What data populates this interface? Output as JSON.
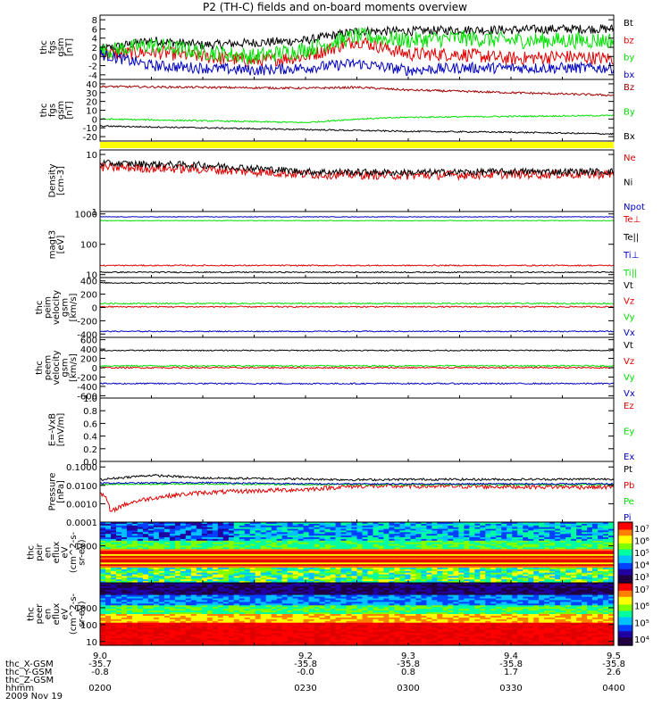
{
  "title": "P2 (TH-C) fields and on-board moments overview",
  "colors": {
    "black": "#000000",
    "red": "#e00000",
    "green": "#00e000",
    "blue": "#0000c0",
    "darkred": "#a00000",
    "yellow": "#ffff00"
  },
  "chart_data": [
    {
      "type": "line",
      "panel": "fgs_gsm",
      "ylabel": [
        "thc",
        "fgs",
        "gsm",
        "[nT]"
      ],
      "ylim": [
        -5,
        9
      ],
      "ticks": [
        [
          8,
          "8"
        ],
        [
          6,
          "6"
        ],
        [
          4,
          "4"
        ],
        [
          2,
          "2"
        ],
        [
          0,
          "0"
        ],
        [
          -2,
          "-2"
        ],
        [
          -4,
          "-4"
        ]
      ],
      "xlim": [
        9.0,
        9.5
      ],
      "series": [
        {
          "name": "Bt",
          "color": "black",
          "x": [
            9.0,
            9.05,
            9.1,
            9.15,
            9.2,
            9.25,
            9.3,
            9.35,
            9.4,
            9.45,
            9.5
          ],
          "values": [
            1.5,
            3.5,
            2.5,
            3.0,
            3.5,
            5.5,
            5.5,
            5.8,
            5.8,
            6.0,
            6.0
          ],
          "noise": 1.0
        },
        {
          "name": "bz",
          "color": "red",
          "x": [
            9.0,
            9.05,
            9.1,
            9.15,
            9.2,
            9.25,
            9.3,
            9.35,
            9.4,
            9.45,
            9.5
          ],
          "values": [
            0.5,
            1.0,
            0.0,
            -1.0,
            0.0,
            3.5,
            0.5,
            0.5,
            -0.5,
            0.0,
            -0.5
          ],
          "noise": 1.5
        },
        {
          "name": "by",
          "color": "green",
          "x": [
            9.0,
            9.05,
            9.1,
            9.15,
            9.2,
            9.25,
            9.3,
            9.35,
            9.4,
            9.45,
            9.5
          ],
          "values": [
            1.0,
            2.5,
            1.0,
            0.0,
            1.5,
            4.5,
            3.5,
            4.0,
            3.5,
            3.5,
            3.5
          ],
          "noise": 1.8
        },
        {
          "name": "bx",
          "color": "blue",
          "x": [
            9.0,
            9.05,
            9.1,
            9.15,
            9.2,
            9.25,
            9.3,
            9.35,
            9.4,
            9.45,
            9.5
          ],
          "values": [
            0.5,
            -2.0,
            -2.5,
            -3.0,
            -2.5,
            -1.5,
            -3.0,
            -2.5,
            -2.5,
            -2.5,
            -2.5
          ],
          "noise": 1.2
        }
      ]
    },
    {
      "type": "line",
      "panel": "fgs_gse",
      "ylabel": [
        "thc",
        "fgs",
        "gsm",
        "[nT]"
      ],
      "ylim": [
        -25,
        45
      ],
      "ticks": [
        [
          40,
          "40"
        ],
        [
          30,
          "30"
        ],
        [
          20,
          "20"
        ],
        [
          10,
          "10"
        ],
        [
          0,
          "0"
        ],
        [
          -10,
          "-10"
        ],
        [
          -20,
          "-20"
        ]
      ],
      "xlim": [
        9.0,
        9.5
      ],
      "series": [
        {
          "name": "Bz",
          "color": "darkred",
          "x": [
            9.0,
            9.1,
            9.2,
            9.25,
            9.3,
            9.4,
            9.5
          ],
          "values": [
            37,
            36,
            35,
            36,
            33,
            30,
            27
          ],
          "noise": 1.2
        },
        {
          "name": "By",
          "color": "green",
          "x": [
            9.0,
            9.1,
            9.2,
            9.25,
            9.3,
            9.4,
            9.5
          ],
          "values": [
            0,
            -2,
            -4,
            0,
            2,
            3,
            4
          ],
          "noise": 0.8
        },
        {
          "name": "Bx",
          "color": "black",
          "x": [
            9.0,
            9.1,
            9.2,
            9.25,
            9.3,
            9.4,
            9.5
          ],
          "values": [
            -8,
            -10,
            -12,
            -13,
            -14,
            -15,
            -17
          ],
          "noise": 0.8
        }
      ]
    },
    {
      "type": "line",
      "panel": "density",
      "ylabel": [
        "Density",
        "[cm-3]"
      ],
      "log": true,
      "ylim": [
        1,
        12
      ],
      "ticks": [
        [
          10,
          "10"
        ],
        [
          1,
          "1"
        ]
      ],
      "xlim": [
        9.0,
        9.5
      ],
      "series": [
        {
          "name": "Ne",
          "color": "red",
          "x": [
            9.0,
            9.1,
            9.2,
            9.3,
            9.4,
            9.5
          ],
          "values": [
            6,
            5.5,
            4.5,
            4.3,
            4.5,
            4.5
          ],
          "noise": 0.08
        },
        {
          "name": "Ni",
          "color": "black",
          "x": [
            9.0,
            9.1,
            9.2,
            9.3,
            9.4,
            9.5
          ],
          "values": [
            7,
            6.5,
            5.0,
            4.8,
            5.0,
            5.0
          ],
          "noise": 0.06
        },
        {
          "name": "Npot",
          "color": "blue",
          "x": [],
          "values": [],
          "noise": 0
        }
      ]
    },
    {
      "type": "line",
      "panel": "temperature",
      "ylabel": [
        "magt3",
        "[eV]"
      ],
      "log": true,
      "ylim": [
        8,
        1200
      ],
      "ticks": [
        [
          1000,
          "1000"
        ],
        [
          100,
          "100"
        ],
        [
          10,
          "10"
        ]
      ],
      "xlim": [
        9.0,
        9.5
      ],
      "series": [
        {
          "name": "Te⊥",
          "color": "red",
          "x": [
            9.0,
            9.5
          ],
          "values": [
            20,
            20
          ],
          "noise": 0.02
        },
        {
          "name": "Te||",
          "color": "black",
          "x": [
            9.0,
            9.5
          ],
          "values": [
            12,
            12
          ],
          "noise": 0.02
        },
        {
          "name": "Ti⊥",
          "color": "blue",
          "x": [
            9.0,
            9.5
          ],
          "values": [
            800,
            800
          ],
          "noise": 0.01
        },
        {
          "name": "Ti||",
          "color": "green",
          "x": [
            9.0,
            9.5
          ],
          "values": [
            600,
            600
          ],
          "noise": 0.01
        }
      ]
    },
    {
      "type": "line",
      "panel": "velocity_1",
      "ylabel": [
        "thc",
        "peim",
        "velocity",
        "gsm",
        "[km/s]"
      ],
      "ylim": [
        -450,
        450
      ],
      "ticks": [
        [
          400,
          "400"
        ],
        [
          200,
          "200"
        ],
        [
          0,
          "0"
        ],
        [
          -200,
          "-200"
        ],
        [
          -400,
          "-400"
        ]
      ],
      "xlim": [
        9.0,
        9.5
      ],
      "series": [
        {
          "name": "Vt",
          "color": "black",
          "x": [
            9.0,
            9.5
          ],
          "values": [
            370,
            360
          ],
          "noise": 8
        },
        {
          "name": "Vz",
          "color": "red",
          "x": [
            9.0,
            9.5
          ],
          "values": [
            10,
            10
          ],
          "noise": 10
        },
        {
          "name": "Vy",
          "color": "green",
          "x": [
            9.0,
            9.5
          ],
          "values": [
            60,
            60
          ],
          "noise": 10
        },
        {
          "name": "Vx",
          "color": "blue",
          "x": [
            9.0,
            9.5
          ],
          "values": [
            -360,
            -360
          ],
          "noise": 8
        }
      ]
    },
    {
      "type": "line",
      "panel": "velocity_2",
      "ylabel": [
        "thc",
        "peem",
        "velocity",
        "gsm",
        "[km/s]"
      ],
      "ylim": [
        -650,
        650
      ],
      "ticks": [
        [
          600,
          "600"
        ],
        [
          400,
          "400"
        ],
        [
          200,
          "200"
        ],
        [
          0,
          "0"
        ],
        [
          -200,
          "-200"
        ],
        [
          -400,
          "-400"
        ],
        [
          -600,
          "-600"
        ]
      ],
      "xlim": [
        9.0,
        9.5
      ],
      "series": [
        {
          "name": "Vt",
          "color": "black",
          "x": [
            9.0,
            9.5
          ],
          "values": [
            370,
            370
          ],
          "noise": 12
        },
        {
          "name": "Vz",
          "color": "red",
          "x": [
            9.0,
            9.5
          ],
          "values": [
            0,
            0
          ],
          "noise": 15
        },
        {
          "name": "Vy",
          "color": "green",
          "x": [
            9.0,
            9.5
          ],
          "values": [
            40,
            40
          ],
          "noise": 15
        },
        {
          "name": "Vx",
          "color": "blue",
          "x": [
            9.0,
            9.5
          ],
          "values": [
            -340,
            -340
          ],
          "noise": 15
        }
      ]
    },
    {
      "type": "line",
      "panel": "efield",
      "ylabel": [
        "E=-VxB",
        "[mV/m]"
      ],
      "ylim": [
        0,
        1
      ],
      "ticks": [
        [
          1,
          "1.0"
        ],
        [
          0.8,
          "0.8"
        ],
        [
          0.6,
          "0.6"
        ],
        [
          0.4,
          "0.4"
        ],
        [
          0.2,
          "0.2"
        ],
        [
          0,
          "0.0"
        ]
      ],
      "xlim": [
        9.0,
        9.5
      ],
      "series": [
        {
          "name": "Ez",
          "color": "red",
          "x": [],
          "values": [],
          "noise": 0
        },
        {
          "name": "Ey",
          "color": "green",
          "x": [],
          "values": [],
          "noise": 0
        },
        {
          "name": "Ex",
          "color": "blue",
          "x": [],
          "values": [],
          "noise": 0
        }
      ]
    },
    {
      "type": "line",
      "panel": "pressure",
      "ylabel": [
        "Pressure",
        "[nPa]"
      ],
      "log": true,
      "ylim": [
        0.0001,
        0.2
      ],
      "ticks": [
        [
          0.1,
          "0.1000"
        ],
        [
          0.01,
          "0.0100"
        ],
        [
          0.001,
          "0.0010"
        ],
        [
          0.0001,
          "0.0001"
        ]
      ],
      "xlim": [
        9.0,
        9.5
      ],
      "series": [
        {
          "name": "Pt",
          "color": "black",
          "x": [
            9.0,
            9.05,
            9.1,
            9.2,
            9.25,
            9.3,
            9.4,
            9.5
          ],
          "values": [
            0.02,
            0.035,
            0.025,
            0.022,
            0.02,
            0.021,
            0.021,
            0.022
          ],
          "noise": 0.06
        },
        {
          "name": "Pb",
          "color": "red",
          "x": [
            9.0,
            9.01,
            9.05,
            9.1,
            9.15,
            9.2,
            9.25,
            9.3,
            9.5
          ],
          "values": [
            0.004,
            0.0003,
            0.002,
            0.004,
            0.005,
            0.006,
            0.009,
            0.009,
            0.008
          ],
          "noise": 0.12
        },
        {
          "name": "Pe",
          "color": "green",
          "x": [
            9.0,
            9.1,
            9.2,
            9.3,
            9.5
          ],
          "values": [
            0.011,
            0.012,
            0.011,
            0.011,
            0.011
          ],
          "noise": 0.04
        },
        {
          "name": "Pi",
          "color": "blue",
          "x": [
            9.0,
            9.1,
            9.2,
            9.3,
            9.5
          ],
          "values": [
            0.013,
            0.014,
            0.012,
            0.012,
            0.012
          ],
          "noise": 0.04
        }
      ]
    },
    {
      "type": "heatmap",
      "panel": "ion_spectrogram",
      "ylabel": [
        "thc",
        "peir",
        "en",
        "eflux",
        "eV",
        "(cm^2-s-",
        "sr-eV)"
      ],
      "log": true,
      "ylim": [
        5,
        30000
      ],
      "ticks": [
        [
          1000,
          "1000"
        ]
      ],
      "colorbar": {
        "labels": [
          "10⁷",
          "10⁶",
          "10⁵",
          "10⁴",
          "10³"
        ],
        "values": [
          7,
          6,
          5,
          4,
          3
        ]
      }
    },
    {
      "type": "heatmap",
      "panel": "electron_spectrogram",
      "ylabel": [
        "thc",
        "peer",
        "en",
        "eflux",
        "eV",
        "(cm^2-s-",
        "sr-eV)"
      ],
      "log": true,
      "ylim": [
        6,
        30000
      ],
      "ticks": [
        [
          1000,
          "1000"
        ],
        [
          100,
          "100"
        ],
        [
          10,
          "10"
        ]
      ],
      "colorbar": {
        "labels": [
          "10⁷",
          "10⁶",
          "10⁵",
          "10⁴"
        ],
        "values": [
          7,
          6,
          5,
          4
        ]
      }
    }
  ],
  "x_axis": {
    "range": [
      9.0,
      9.5
    ],
    "labels": [
      "9.0",
      "9.2",
      "9.3",
      "9.4",
      "9.5"
    ],
    "positions": [
      9.0,
      9.2,
      9.3,
      9.4,
      9.5
    ],
    "rows": [
      {
        "name": "thc_X-GSM",
        "values": [
          "-35.7",
          "-35.8",
          "-35.8",
          "-35.8",
          "-35.8"
        ]
      },
      {
        "name": "thc_Y-GSM",
        "values": [
          "-0.8",
          "-0.0",
          "0.8",
          "1.7",
          "2.6"
        ]
      },
      {
        "name": "thc_Z-GSM",
        "values": [
          "",
          "",
          "",
          "",
          ""
        ]
      },
      {
        "name": "hhmm",
        "values": [
          "0200",
          "0230",
          "0300",
          "0330",
          "0400"
        ]
      }
    ],
    "date": "2009 Nov 19"
  }
}
